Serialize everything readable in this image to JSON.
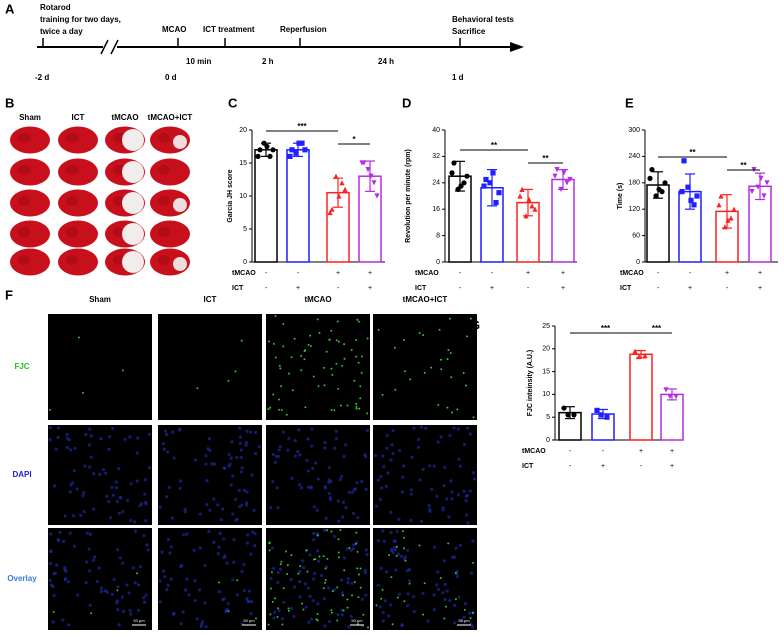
{
  "panel_labels": [
    "A",
    "B",
    "C",
    "D",
    "E",
    "F",
    "G"
  ],
  "timeline": {
    "pre": [
      "Rotarod",
      "training for two days,",
      "twice a day"
    ],
    "events": [
      "MCAO",
      "ICT treatment",
      "Reperfusion"
    ],
    "end": [
      "Behavioral tests",
      "Sacrifice"
    ],
    "times": [
      "-2 d",
      "0 d",
      "1 d"
    ],
    "intervals": [
      "10 min",
      "2 h",
      "24 h"
    ]
  },
  "groups": [
    "Sham",
    "ICT",
    "tMCAO",
    "tMCAO+ICT"
  ],
  "fluorescence": {
    "channels": [
      "FJC",
      "DAPI",
      "Overlay"
    ],
    "scale_bar": "50 μm"
  },
  "chart_data": [
    {
      "type": "bar",
      "y_label": "Garcia JH score",
      "ylim": [
        0,
        20
      ],
      "yticks": [
        0,
        5,
        10,
        15,
        20
      ],
      "values": [
        17,
        17,
        10.5,
        13
      ],
      "errors": [
        1,
        1,
        2.2,
        2.3
      ],
      "points": [
        [
          17,
          16,
          18,
          17,
          16,
          17.5
        ],
        [
          17,
          18,
          16.5,
          17,
          16,
          18
        ],
        [
          8,
          12,
          13,
          11,
          7.5,
          10
        ],
        [
          15,
          12,
          14,
          10,
          15,
          13
        ]
      ],
      "colors": [
        "#000000",
        "#1f1fff",
        "#ff2020",
        "#b32ee0"
      ],
      "markers": [
        "circle",
        "square",
        "triangle-up",
        "triangle-down"
      ],
      "significance": [
        {
          "label": "***",
          "between": [
            0,
            2
          ]
        },
        {
          "label": "*",
          "between": [
            2,
            3
          ]
        }
      ],
      "conditions": [
        {
          "name": "tMCAO",
          "signs": [
            "-",
            "-",
            "+",
            "+"
          ]
        },
        {
          "name": "ICT",
          "signs": [
            "-",
            "+",
            "-",
            "+"
          ]
        }
      ]
    },
    {
      "type": "bar",
      "y_label": "Revolution per minute (rpm)",
      "ylim": [
        0,
        40
      ],
      "yticks": [
        0,
        8,
        16,
        24,
        32,
        40
      ],
      "values": [
        26,
        22.5,
        18,
        25
      ],
      "errors": [
        4.5,
        5.5,
        4,
        3
      ],
      "points": [
        [
          30,
          24,
          22,
          26,
          27,
          23
        ],
        [
          25,
          18,
          24,
          21,
          23,
          27
        ],
        [
          22,
          17,
          14,
          16,
          20,
          19
        ],
        [
          28,
          24,
          22,
          25,
          26,
          27
        ]
      ],
      "colors": [
        "#000000",
        "#1f1fff",
        "#ff2020",
        "#b32ee0"
      ],
      "markers": [
        "circle",
        "square",
        "triangle-up",
        "triangle-down"
      ],
      "significance": [
        {
          "label": "**",
          "between": [
            0,
            2
          ]
        },
        {
          "label": "**",
          "between": [
            2,
            3
          ]
        }
      ],
      "conditions": [
        {
          "name": "tMCAO",
          "signs": [
            "-",
            "-",
            "+",
            "+"
          ]
        },
        {
          "name": "ICT",
          "signs": [
            "-",
            "+",
            "-",
            "+"
          ]
        }
      ]
    },
    {
      "type": "bar",
      "y_label": "Time (s)",
      "ylim": [
        0,
        300
      ],
      "yticks": [
        0,
        60,
        120,
        180,
        240,
        300
      ],
      "values": [
        175,
        160,
        115,
        172
      ],
      "errors": [
        30,
        40,
        38,
        30
      ],
      "points": [
        [
          210,
          160,
          150,
          180,
          190,
          165
        ],
        [
          230,
          130,
          170,
          150,
          160,
          140
        ],
        [
          150,
          100,
          80,
          120,
          130,
          95
        ],
        [
          210,
          150,
          170,
          180,
          160,
          190
        ]
      ],
      "colors": [
        "#000000",
        "#1f1fff",
        "#ff2020",
        "#b32ee0"
      ],
      "markers": [
        "circle",
        "square",
        "triangle-up",
        "triangle-down"
      ],
      "significance": [
        {
          "label": "**",
          "between": [
            0,
            2
          ]
        },
        {
          "label": "**",
          "between": [
            2,
            3
          ]
        }
      ],
      "conditions": [
        {
          "name": "tMCAO",
          "signs": [
            "-",
            "-",
            "+",
            "+"
          ]
        },
        {
          "name": "ICT",
          "signs": [
            "-",
            "+",
            "-",
            "+"
          ]
        }
      ]
    },
    {
      "type": "bar",
      "y_label": "FJC inteinsity (A.U.)",
      "ylim": [
        0,
        25
      ],
      "yticks": [
        0,
        5,
        10,
        15,
        20,
        25
      ],
      "values": [
        6,
        5.7,
        18.8,
        10
      ],
      "errors": [
        1.3,
        1,
        0.8,
        1.2
      ],
      "points": [
        [
          7,
          5.5,
          5.5
        ],
        [
          6.5,
          5,
          5.5
        ],
        [
          19.5,
          18.5,
          18.3
        ],
        [
          11,
          9.5,
          9.5
        ]
      ],
      "colors": [
        "#000000",
        "#1f1fff",
        "#ff2020",
        "#b32ee0"
      ],
      "markers": [
        "circle",
        "square",
        "triangle-up",
        "triangle-down"
      ],
      "significance": [
        {
          "label": "***",
          "between": [
            0,
            2
          ]
        },
        {
          "label": "***",
          "between": [
            2,
            3
          ]
        }
      ],
      "conditions": [
        {
          "name": "tMCAO",
          "signs": [
            "-",
            "-",
            "+",
            "+"
          ]
        },
        {
          "name": "ICT",
          "signs": [
            "-",
            "+",
            "-",
            "+"
          ]
        }
      ]
    }
  ]
}
